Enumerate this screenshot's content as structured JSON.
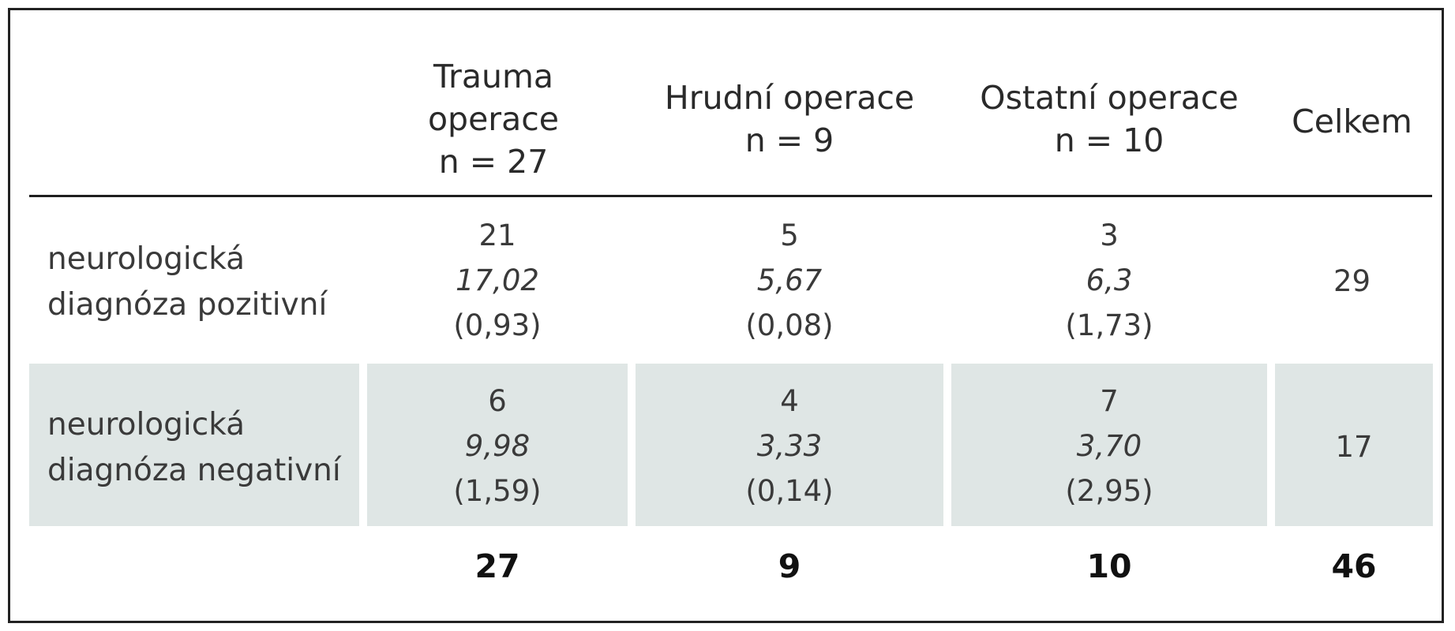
{
  "table": {
    "headers": [
      {
        "lines": [
          "Trauma",
          "operace",
          "n = 27"
        ]
      },
      {
        "lines": [
          "Hrudní operace",
          "n = 9"
        ]
      },
      {
        "lines": [
          "Ostatní operace",
          "n = 10"
        ]
      },
      {
        "lines": [
          "Celkem"
        ]
      }
    ],
    "rows": [
      {
        "label_lines": [
          "neurologická",
          "diagnóza pozitivní"
        ],
        "cells": [
          {
            "observed": "21",
            "expected": "17,02",
            "chi": "(0,93)"
          },
          {
            "observed": "5",
            "expected": "5,67",
            "chi": "(0,08)"
          },
          {
            "observed": "3",
            "expected": "6,3",
            "chi": "(1,73)"
          }
        ],
        "total": "29"
      },
      {
        "label_lines": [
          "neurologická",
          "diagnóza negativní"
        ],
        "cells": [
          {
            "observed": "6",
            "expected": "9,98",
            "chi": "(1,59)"
          },
          {
            "observed": "4",
            "expected": "3,33",
            "chi": "(0,14)"
          },
          {
            "observed": "7",
            "expected": "3,70",
            "chi": "(2,95)"
          }
        ],
        "total": "17"
      }
    ],
    "totals": [
      "27",
      "9",
      "10",
      "46"
    ]
  },
  "colors": {
    "row_shade": "#dfe6e5",
    "rule": "#1e1e1e"
  }
}
